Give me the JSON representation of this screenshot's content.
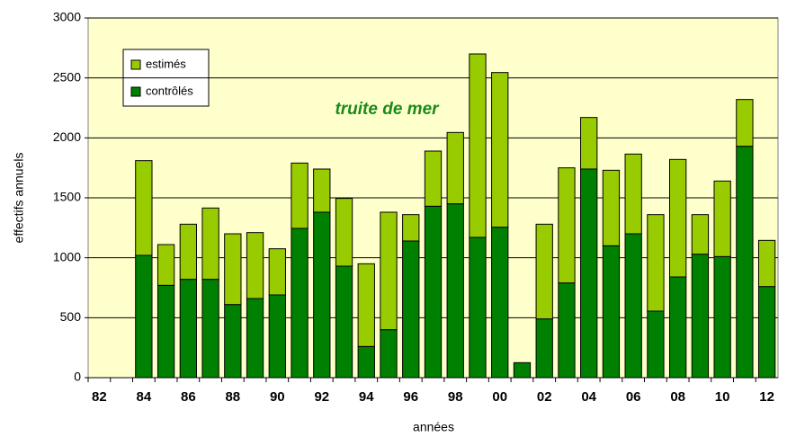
{
  "chart_data": {
    "type": "stacked_bar",
    "annotation": "truite de mer",
    "xlabel": "années",
    "ylabel": "effectifs annuels",
    "categories": [
      "82",
      null,
      "84",
      null,
      "86",
      null,
      "88",
      null,
      "90",
      null,
      "92",
      null,
      "94",
      null,
      "96",
      null,
      "98",
      null,
      "00",
      null,
      "02",
      null,
      "04",
      null,
      "06",
      null,
      "08",
      null,
      "10",
      null,
      "12"
    ],
    "series": [
      {
        "name": "estimés",
        "color": "#99cc00",
        "values": [
          0,
          0,
          790,
          340,
          460,
          595,
          590,
          550,
          385,
          545,
          360,
          565,
          690,
          980,
          220,
          460,
          595,
          1530,
          1290,
          0,
          790,
          960,
          430,
          630,
          665,
          805,
          980,
          330,
          630,
          390,
          385
        ]
      },
      {
        "name": "contrôlés",
        "color": "#008000",
        "values": [
          0,
          0,
          1020,
          770,
          820,
          820,
          610,
          660,
          690,
          1245,
          1380,
          930,
          260,
          400,
          1140,
          1430,
          1450,
          1170,
          1255,
          125,
          490,
          790,
          1740,
          1100,
          1200,
          555,
          840,
          1030,
          1010,
          1930,
          760
        ]
      }
    ],
    "ylim": [
      0,
      3000
    ],
    "yticks": [
      0,
      500,
      1000,
      1500,
      2000,
      2500,
      3000
    ],
    "grid": true
  }
}
